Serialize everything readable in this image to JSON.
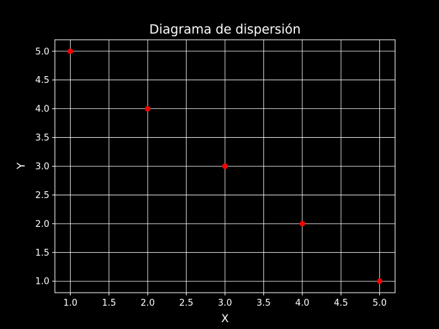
{
  "chart_data": {
    "type": "scatter",
    "title": "Diagrama de dispersión",
    "xlabel": "X",
    "ylabel": "Y",
    "xlim": [
      0.8,
      5.2
    ],
    "ylim": [
      0.8,
      5.2
    ],
    "xticks": [
      "1.0",
      "1.5",
      "2.0",
      "2.5",
      "3.0",
      "3.5",
      "4.0",
      "4.5",
      "5.0"
    ],
    "yticks": [
      "1.0",
      "1.5",
      "2.0",
      "2.5",
      "3.0",
      "3.5",
      "4.0",
      "4.5",
      "5.0"
    ],
    "grid": true,
    "series": [
      {
        "x": [
          1,
          2,
          3,
          4,
          5
        ],
        "y": [
          5,
          4,
          3,
          2,
          1
        ]
      }
    ]
  },
  "colors": {
    "background": "#000000",
    "foreground": "#ffffff",
    "grid": "#ffffff",
    "marker": "#ff0000"
  }
}
